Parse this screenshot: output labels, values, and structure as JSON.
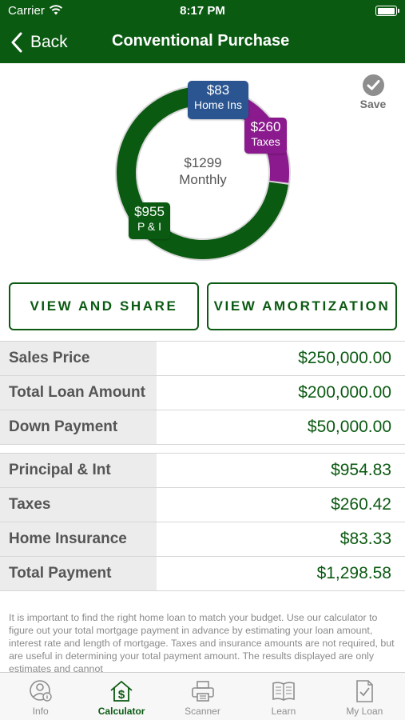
{
  "status_bar": {
    "carrier": "Carrier",
    "time": "8:17 PM",
    "battery_level": 1.0
  },
  "nav": {
    "back_label": "Back",
    "title": "Conventional Purchase"
  },
  "chart_data": {
    "type": "pie",
    "center_amount": "$1299",
    "center_label": "Monthly",
    "slices": [
      {
        "label": "P & I",
        "display": "$955",
        "value": 954.83,
        "color": "#0b5a12"
      },
      {
        "label": "Taxes",
        "display": "$260",
        "value": 260.42,
        "color": "#8a1a8d"
      },
      {
        "label": "Home Ins",
        "display": "$83",
        "value": 83.33,
        "color": "#2a5591"
      }
    ]
  },
  "save": {
    "label": "Save"
  },
  "buttons": {
    "view_and_share": "VIEW AND SHARE",
    "view_amortization": "VIEW AMORTIZATION"
  },
  "loan_table": [
    {
      "label": "Sales Price",
      "value": "$250,000.00"
    },
    {
      "label": "Total Loan Amount",
      "value": "$200,000.00"
    },
    {
      "label": "Down Payment",
      "value": "$50,000.00"
    }
  ],
  "payment_table": [
    {
      "label": "Principal & Int",
      "value": "$954.83"
    },
    {
      "label": "Taxes",
      "value": "$260.42"
    },
    {
      "label": "Home Insurance",
      "value": "$83.33"
    },
    {
      "label": "Total Payment",
      "value": "$1,298.58"
    }
  ],
  "disclaimer": "It is important to find the right home loan to match your budget. Use our calculator to figure out your total mortgage payment in advance by estimating your loan amount, interest rate and length of mortgage. Taxes and insurance amounts are not required, but are useful in determining your total payment amount.  The results displayed are only estimates and cannot",
  "tabbar": {
    "items": [
      {
        "label": "Info",
        "icon": "info-icon",
        "active": false
      },
      {
        "label": "Calculator",
        "icon": "calculator-house-icon",
        "active": true
      },
      {
        "label": "Scanner",
        "icon": "printer-icon",
        "active": false
      },
      {
        "label": "Learn",
        "icon": "book-icon",
        "active": false
      },
      {
        "label": "My Loan",
        "icon": "document-check-icon",
        "active": false
      }
    ]
  },
  "colors": {
    "brand_green": "#0b5a12",
    "taxes_purple": "#8a1a8d",
    "home_ins_blue": "#2a5591"
  }
}
